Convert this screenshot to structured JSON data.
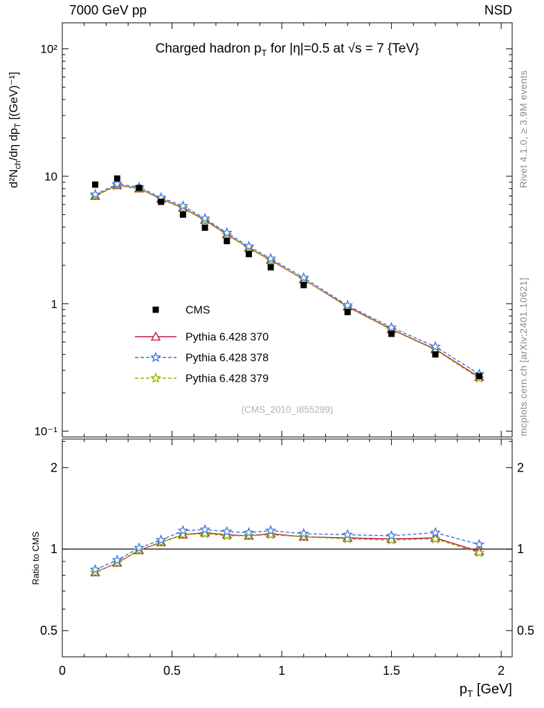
{
  "chart_data": {
    "type": "line",
    "header_left": "7000 GeV pp",
    "header_right": "NSD",
    "title": "Charged hadron p_T for |η|=0.5 at √s = 7 {TeV}",
    "xlabel": "p_T [GeV]",
    "ylabel_main": "d²N_ch/dη dp_T [(GeV)⁻¹]",
    "ylabel_ratio": "Ratio to CMS",
    "watermark": "(CMS_2010_I855299)",
    "side_label_top": "Rivet 4.1.0, ≥ 3.9M events",
    "side_label_bottom": "mcplots.cern.ch [arXiv:2401.10621]",
    "legend_position": "left-middle",
    "grid": false,
    "xlim": [
      0,
      2.05
    ],
    "ylim_main": [
      0.09,
      160
    ],
    "ylim_ratio": [
      0.4,
      2.55
    ],
    "x_ticks_major": [
      0,
      0.5,
      1,
      1.5,
      2
    ],
    "x_tick_labels": [
      "0",
      "0.5",
      "1",
      "1.5",
      "2"
    ],
    "x_minor_step": 0.1,
    "y_ticks_main": [
      {
        "v": 100,
        "label": "10²"
      },
      {
        "v": 10,
        "label": "10"
      },
      {
        "v": 1,
        "label": "1"
      },
      {
        "v": 0.1,
        "label": "10⁻¹"
      }
    ],
    "y_ticks_ratio": [
      {
        "v": 2,
        "label": "2"
      },
      {
        "v": 1,
        "label": "1"
      },
      {
        "v": 0.5,
        "label": "0.5"
      }
    ],
    "y_minor_ticks_ratio": [
      0.4,
      0.6,
      0.7,
      0.8,
      0.9,
      2.5
    ],
    "x": [
      0.15,
      0.25,
      0.35,
      0.45,
      0.55,
      0.65,
      0.75,
      0.85,
      0.95,
      1.1,
      1.3,
      1.5,
      1.7,
      1.9
    ],
    "series": [
      {
        "name": "CMS",
        "kind": "data",
        "marker": "square",
        "color": "#000000",
        "values": [
          8.6,
          9.6,
          8.1,
          6.3,
          5.0,
          3.95,
          3.1,
          2.45,
          1.93,
          1.4,
          0.86,
          0.58,
          0.4,
          0.27
        ]
      },
      {
        "name": "Pythia 6.428 370",
        "kind": "mc",
        "marker": "triangle-open",
        "line": "solid",
        "color": "#c0143c",
        "values": [
          7.0,
          8.5,
          8.0,
          6.65,
          5.65,
          4.54,
          3.5,
          2.74,
          2.2,
          1.55,
          0.95,
          0.63,
          0.44,
          0.265
        ],
        "ratio": [
          0.82,
          0.89,
          0.99,
          1.06,
          1.13,
          1.15,
          1.13,
          1.12,
          1.14,
          1.11,
          1.1,
          1.09,
          1.1,
          0.98
        ]
      },
      {
        "name": "Pythia 6.428 378",
        "kind": "mc",
        "marker": "star",
        "line": "dashed",
        "color": "#3a6fd8",
        "values": [
          7.2,
          8.7,
          8.2,
          6.8,
          5.85,
          4.66,
          3.6,
          2.82,
          2.26,
          1.6,
          0.97,
          0.65,
          0.46,
          0.28
        ],
        "ratio": [
          0.84,
          0.91,
          1.01,
          1.08,
          1.17,
          1.18,
          1.16,
          1.15,
          1.17,
          1.14,
          1.13,
          1.12,
          1.15,
          1.04
        ]
      },
      {
        "name": "Pythia 6.428 379",
        "kind": "mc",
        "marker": "star",
        "line": "dashed",
        "color": "#86b300",
        "values": [
          7.0,
          8.5,
          8.0,
          6.6,
          5.6,
          4.5,
          3.47,
          2.74,
          2.18,
          1.55,
          0.94,
          0.625,
          0.435,
          0.26
        ],
        "ratio": [
          0.82,
          0.89,
          0.99,
          1.06,
          1.13,
          1.14,
          1.12,
          1.12,
          1.13,
          1.11,
          1.09,
          1.08,
          1.09,
          0.97
        ]
      }
    ]
  }
}
